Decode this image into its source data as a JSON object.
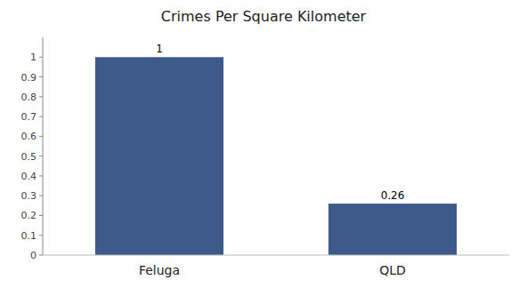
{
  "chart_data": {
    "type": "bar",
    "title": "Crimes Per Square Kilometer",
    "categories": [
      "Feluga",
      "QLD"
    ],
    "values": [
      1.0,
      0.26
    ],
    "color": "#3d5a8a",
    "ylim": [
      0,
      1.1
    ],
    "yticks": [
      0,
      0.1,
      0.2,
      0.3,
      0.4,
      0.5,
      0.6,
      0.7,
      0.8,
      0.9,
      1
    ],
    "grid": false,
    "data_labels": true
  }
}
